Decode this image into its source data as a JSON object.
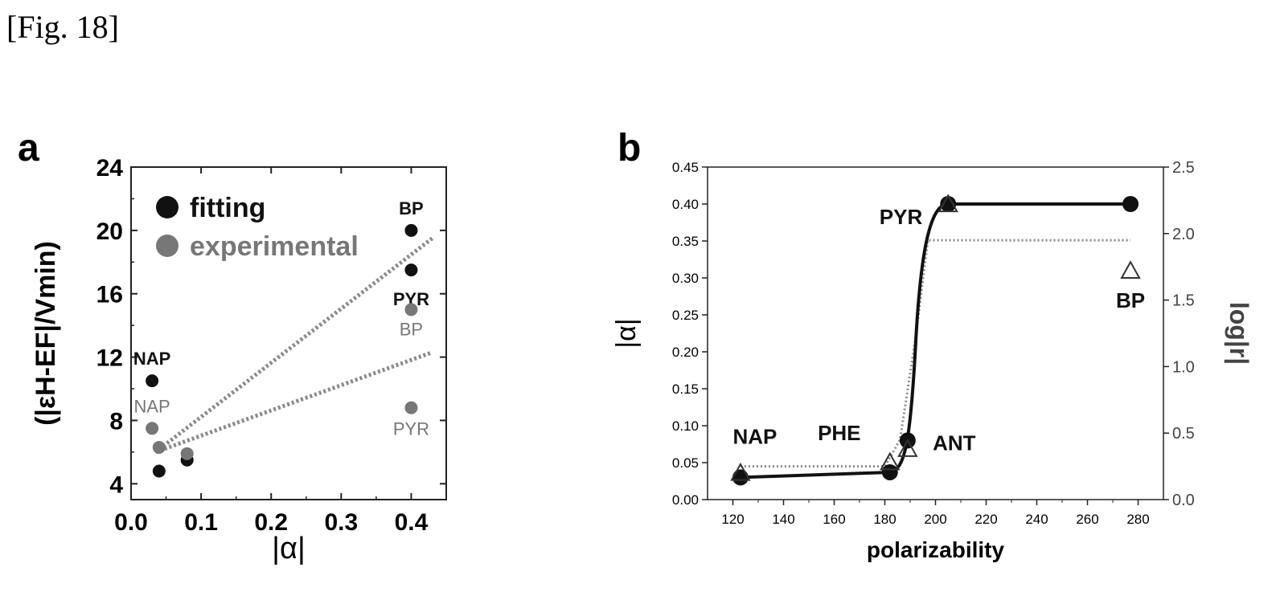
{
  "figure": {
    "caption": "[Fig. 18]"
  },
  "colors": {
    "fitting": "#111111",
    "experimental": "#777777",
    "fit_line": "#8a8a8a",
    "axis": "#222222"
  },
  "chart_data": [
    {
      "panel": "a",
      "type": "scatter",
      "xlabel": "|α|",
      "ylabel": "(|εH-EF|/Vmin)",
      "xlim": [
        0.0,
        0.45
      ],
      "ylim": [
        3,
        24
      ],
      "xticks": [
        "0.0",
        "0.1",
        "0.2",
        "0.3",
        "0.4"
      ],
      "yticks": [
        "4",
        "8",
        "12",
        "16",
        "20",
        "24"
      ],
      "legend": {
        "position": "top-left",
        "entries": [
          "fitting",
          "experimental"
        ]
      },
      "series": [
        {
          "name": "fitting",
          "points": [
            {
              "x": 0.03,
              "y": 10.5,
              "label": "NAP"
            },
            {
              "x": 0.04,
              "y": 4.8,
              "label": ""
            },
            {
              "x": 0.08,
              "y": 5.5,
              "label": ""
            },
            {
              "x": 0.4,
              "y": 20.0,
              "label": "BP"
            },
            {
              "x": 0.4,
              "y": 17.5,
              "label": "PYR"
            }
          ]
        },
        {
          "name": "experimental",
          "points": [
            {
              "x": 0.03,
              "y": 7.5,
              "label": "NAP"
            },
            {
              "x": 0.04,
              "y": 6.3,
              "label": ""
            },
            {
              "x": 0.08,
              "y": 5.9,
              "label": ""
            },
            {
              "x": 0.4,
              "y": 15.0,
              "label": "BP"
            },
            {
              "x": 0.4,
              "y": 8.8,
              "label": "PYR"
            }
          ]
        }
      ],
      "trend_lines": [
        {
          "x": [
            0.035,
            0.43
          ],
          "y": [
            6.0,
            19.5
          ]
        },
        {
          "x": [
            0.035,
            0.43
          ],
          "y": [
            6.0,
            12.3
          ]
        }
      ]
    },
    {
      "panel": "b",
      "type": "line",
      "xlabel": "polarizability",
      "ylabel_left": "|α|",
      "ylabel_right": "log|r|",
      "xlim": [
        110,
        290
      ],
      "ylim_left": [
        0.0,
        0.45
      ],
      "ylim_right": [
        0.0,
        2.5
      ],
      "xticks": [
        "120",
        "140",
        "160",
        "180",
        "200",
        "220",
        "240",
        "260",
        "280"
      ],
      "yticks_left": [
        "0.00",
        "0.05",
        "0.10",
        "0.15",
        "0.20",
        "0.25",
        "0.30",
        "0.35",
        "0.40",
        "0.45"
      ],
      "yticks_right": [
        "0.0",
        "0.5",
        "1.0",
        "1.5",
        "2.0",
        "2.5"
      ],
      "alpha_points": [
        {
          "x": 123,
          "y": 0.03,
          "label": "NAP"
        },
        {
          "x": 182,
          "y": 0.037,
          "label": "PHE"
        },
        {
          "x": 189,
          "y": 0.08,
          "label": "ANT"
        },
        {
          "x": 205,
          "y": 0.4,
          "label": "PYR"
        },
        {
          "x": 277,
          "y": 0.4,
          "label": "BP"
        }
      ],
      "log_r_points": [
        {
          "x": 123,
          "y": 0.2
        },
        {
          "x": 182,
          "y": 0.28
        },
        {
          "x": 189,
          "y": 0.38
        },
        {
          "x": 205,
          "y": 2.22
        },
        {
          "x": 277,
          "y": 1.72
        }
      ],
      "log_r_fit": {
        "low": 0.25,
        "high": 1.95,
        "from": 123,
        "to": 277
      }
    }
  ]
}
